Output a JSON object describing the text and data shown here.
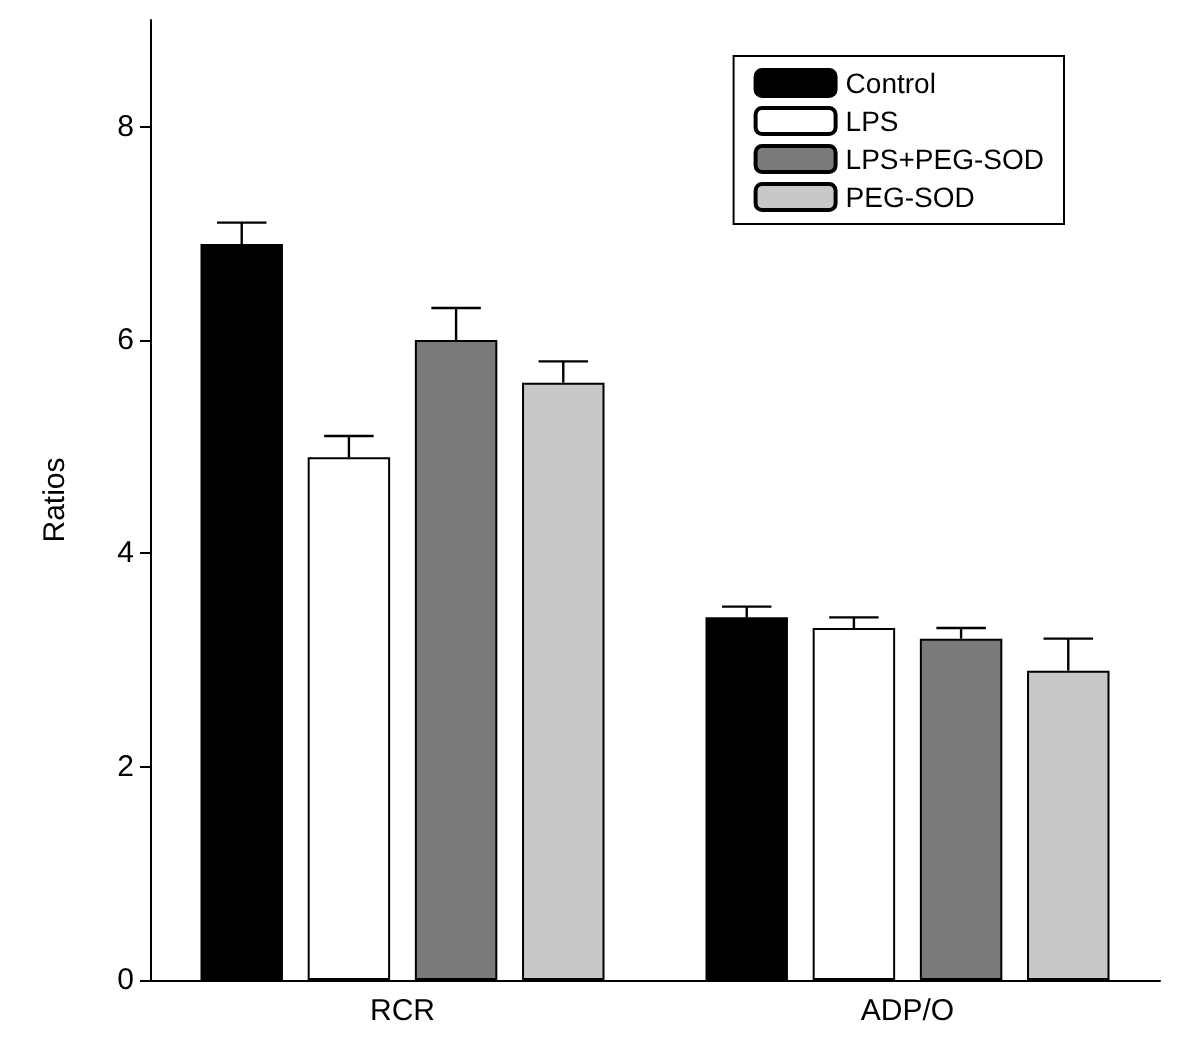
{
  "chart_data": {
    "type": "bar",
    "ylabel": "Ratios",
    "categories": [
      "RCR",
      "ADP/O"
    ],
    "series": [
      {
        "name": "Control",
        "color": "#000000",
        "values": [
          6.9,
          3.4
        ],
        "errors": [
          [
            6.9,
            7.1
          ],
          [
            3.4,
            3.5
          ]
        ]
      },
      {
        "name": "LPS",
        "color": "#ffffff",
        "values": [
          4.9,
          3.3
        ],
        "errors": [
          [
            4.9,
            5.1
          ],
          [
            3.3,
            3.4
          ]
        ]
      },
      {
        "name": "LPS+PEG-SOD",
        "color": "#7a7a7a",
        "values": [
          6.0,
          3.2
        ],
        "errors": [
          [
            6.0,
            6.3
          ],
          [
            3.2,
            3.3
          ]
        ]
      },
      {
        "name": "PEG-SOD",
        "color": "#c8c8c8",
        "values": [
          5.6,
          2.9
        ],
        "errors": [
          [
            5.6,
            5.8
          ],
          [
            2.9,
            3.2
          ]
        ]
      }
    ],
    "ylim": [
      0,
      9
    ],
    "yticks": [
      0,
      2,
      4,
      6,
      8
    ],
    "grid": false,
    "legend": "top right"
  }
}
